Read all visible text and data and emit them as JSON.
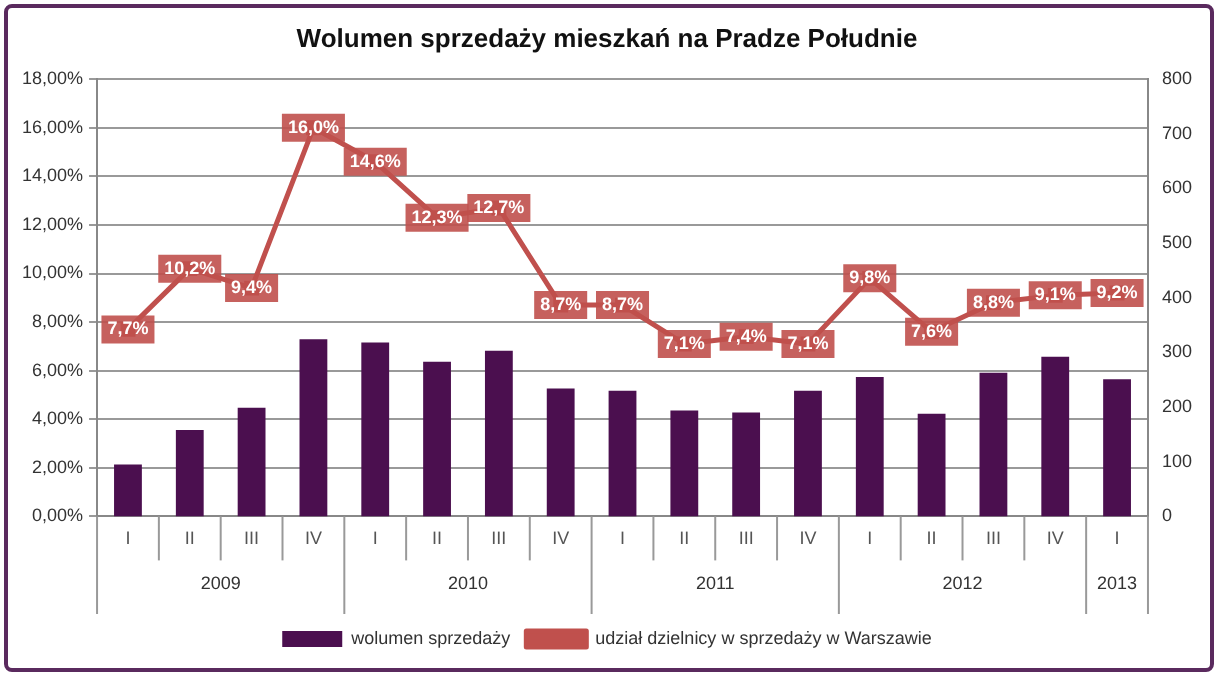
{
  "chart_data": {
    "type": "bar",
    "title": "Wolumen sprzedaży mieszkań na Pradze Południe",
    "categories": [
      "I",
      "II",
      "III",
      "IV",
      "I",
      "II",
      "III",
      "IV",
      "I",
      "II",
      "III",
      "IV",
      "I",
      "II",
      "III",
      "IV",
      "I"
    ],
    "series": [
      {
        "name": "wolumen sprzedaży",
        "axis": "y2",
        "color": "#4b0f4f",
        "values": [
          95,
          158,
          199,
          324,
          318,
          283,
          303,
          234,
          230,
          194,
          190,
          230,
          255,
          188,
          263,
          292,
          251
        ]
      },
      {
        "name": "udział dzielnicy w sprzedaży w Warszawie",
        "type": "line",
        "axis": "y",
        "color": "#c0504d",
        "marker": "square",
        "values": [
          7.7,
          10.2,
          9.4,
          16.0,
          14.6,
          12.3,
          12.7,
          8.7,
          8.7,
          7.1,
          7.4,
          7.1,
          9.8,
          7.6,
          8.8,
          9.1,
          9.2
        ],
        "value_labels": [
          "7,7%",
          "10,2%",
          "9,4%",
          "16,0%",
          "14,6%",
          "12,3%",
          "12,7%",
          "8,7%",
          "8,7%",
          "7,1%",
          "7,4%",
          "7,1%",
          "9,8%",
          "7,6%",
          "8,8%",
          "9,1%",
          "9,2%"
        ]
      }
    ],
    "annotations": [
      "2009",
      "2010",
      "2011",
      "2012",
      "2013"
    ],
    "ylim": [
      0,
      18
    ],
    "yticks": [
      {
        "value": 0,
        "label": "0,00%"
      },
      {
        "value": 2,
        "label": "2,00%"
      },
      {
        "value": 4,
        "label": "4,00%"
      },
      {
        "value": 6,
        "label": "6,00%"
      },
      {
        "value": 8,
        "label": "8,00%"
      },
      {
        "value": 10,
        "label": "10,00%"
      },
      {
        "value": 12,
        "label": "12,00%"
      },
      {
        "value": 14,
        "label": "14,00%"
      },
      {
        "value": 16,
        "label": "16,00%"
      },
      {
        "value": 18,
        "label": "18,00%"
      }
    ],
    "y2lim": [
      0,
      800
    ],
    "y2ticks": [
      0,
      100,
      200,
      300,
      400,
      500,
      600,
      700,
      800
    ],
    "grid": "y",
    "legend": "bottom"
  }
}
